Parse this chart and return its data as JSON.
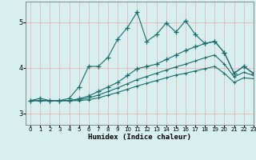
{
  "title": "",
  "xlabel": "Humidex (Indice chaleur)",
  "ylabel": "",
  "xlim": [
    -0.5,
    23
  ],
  "ylim": [
    2.75,
    5.45
  ],
  "bg_color": "#d8efef",
  "grid_color": "#e8b8b8",
  "line_color": "#1a6b6b",
  "spine_color": "#888888",
  "yticks": [
    3,
    4,
    5
  ],
  "xticks": [
    0,
    1,
    2,
    3,
    4,
    5,
    6,
    7,
    8,
    9,
    10,
    11,
    12,
    13,
    14,
    15,
    16,
    17,
    18,
    19,
    20,
    21,
    22,
    23
  ],
  "series1_x": [
    0,
    1,
    2,
    3,
    4,
    5,
    6,
    7,
    8,
    9,
    10,
    11,
    12,
    13,
    14,
    15,
    16,
    17,
    18,
    19,
    20,
    21,
    22,
    23
  ],
  "series1_y": [
    3.28,
    3.33,
    3.28,
    3.28,
    3.33,
    3.58,
    4.03,
    4.03,
    4.23,
    4.63,
    4.88,
    5.22,
    4.58,
    4.73,
    4.98,
    4.78,
    5.03,
    4.73,
    4.53,
    4.58,
    4.33,
    3.88,
    4.03,
    3.88
  ],
  "series2_x": [
    0,
    1,
    2,
    3,
    4,
    5,
    6,
    7,
    8,
    9,
    10,
    11,
    12,
    13,
    14,
    15,
    16,
    17,
    18,
    19,
    20,
    21,
    22,
    23
  ],
  "series2_y": [
    3.28,
    3.28,
    3.28,
    3.28,
    3.28,
    3.32,
    3.38,
    3.48,
    3.58,
    3.68,
    3.83,
    3.98,
    4.03,
    4.08,
    4.18,
    4.28,
    4.38,
    4.46,
    4.53,
    4.58,
    4.33,
    3.88,
    4.03,
    3.88
  ],
  "series3_x": [
    0,
    1,
    2,
    3,
    4,
    5,
    6,
    7,
    8,
    9,
    10,
    11,
    12,
    13,
    14,
    15,
    16,
    17,
    18,
    19,
    20,
    21,
    22,
    23
  ],
  "series3_y": [
    3.28,
    3.28,
    3.28,
    3.28,
    3.28,
    3.3,
    3.34,
    3.4,
    3.48,
    3.56,
    3.65,
    3.74,
    3.81,
    3.88,
    3.95,
    4.02,
    4.08,
    4.15,
    4.22,
    4.28,
    4.08,
    3.8,
    3.9,
    3.83
  ],
  "series4_x": [
    0,
    1,
    2,
    3,
    4,
    5,
    6,
    7,
    8,
    9,
    10,
    11,
    12,
    13,
    14,
    15,
    16,
    17,
    18,
    19,
    20,
    21,
    22,
    23
  ],
  "series4_y": [
    3.28,
    3.28,
    3.28,
    3.28,
    3.28,
    3.28,
    3.3,
    3.34,
    3.4,
    3.46,
    3.53,
    3.6,
    3.66,
    3.72,
    3.78,
    3.84,
    3.88,
    3.93,
    3.98,
    4.03,
    3.88,
    3.68,
    3.78,
    3.76
  ]
}
